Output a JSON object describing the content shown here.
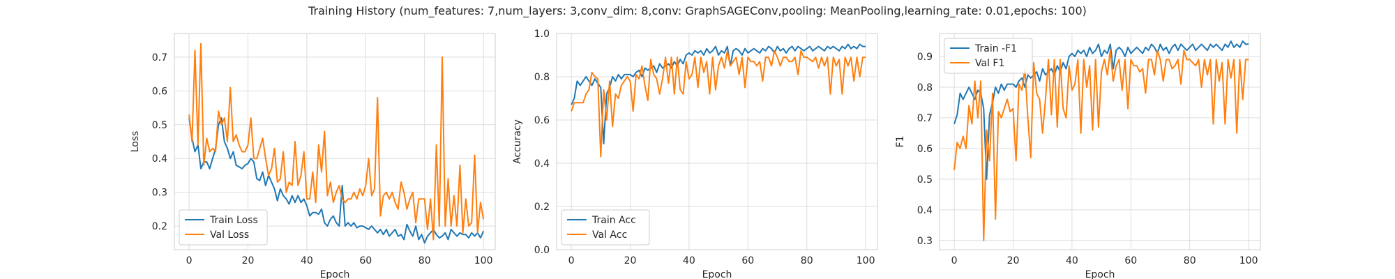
{
  "suptitle": "Training History (num_features: 7,num_layers: 3,conv_dim: 8,conv: GraphSAGEConv,pooling: MeanPooling,learning_rate: 0.01,epochs: 100)",
  "colors": {
    "train": "#1f77b4",
    "val": "#ff7f0e",
    "grid": "#dddddd",
    "frame": "#cccccc"
  },
  "chart_data": [
    {
      "type": "line",
      "xlabel": "Epoch",
      "ylabel": "Loss",
      "xlim": [
        -5,
        104
      ],
      "ylim": [
        0.13,
        0.77
      ],
      "xticks": [
        0,
        20,
        40,
        60,
        80,
        100
      ],
      "yticks": [
        0.2,
        0.3,
        0.4,
        0.5,
        0.6,
        0.7
      ],
      "xtick_labels": [
        "0",
        "20",
        "40",
        "60",
        "80",
        "100"
      ],
      "ytick_labels": [
        "0.2",
        "0.3",
        "0.4",
        "0.5",
        "0.6",
        "0.7"
      ],
      "grid": true,
      "legend": "lower left",
      "series": [
        {
          "name": "Train Loss",
          "color": "#1f77b4",
          "values": [
            0.52,
            0.46,
            0.42,
            0.44,
            0.37,
            0.39,
            0.39,
            0.37,
            0.4,
            0.43,
            0.5,
            0.52,
            0.45,
            0.43,
            0.4,
            0.42,
            0.38,
            0.375,
            0.37,
            0.38,
            0.385,
            0.4,
            0.39,
            0.34,
            0.335,
            0.36,
            0.32,
            0.35,
            0.33,
            0.31,
            0.275,
            0.31,
            0.29,
            0.28,
            0.265,
            0.29,
            0.27,
            0.29,
            0.27,
            0.28,
            0.26,
            0.23,
            0.24,
            0.24,
            0.235,
            0.25,
            0.21,
            0.2,
            0.22,
            0.23,
            0.21,
            0.2,
            0.32,
            0.2,
            0.21,
            0.2,
            0.21,
            0.195,
            0.2,
            0.2,
            0.195,
            0.19,
            0.2,
            0.19,
            0.18,
            0.19,
            0.175,
            0.19,
            0.17,
            0.18,
            0.19,
            0.17,
            0.175,
            0.16,
            0.205,
            0.185,
            0.17,
            0.2,
            0.16,
            0.175,
            0.15,
            0.17,
            0.18,
            0.19,
            0.175,
            0.165,
            0.17,
            0.18,
            0.16,
            0.19,
            0.18,
            0.17,
            0.18,
            0.175,
            0.175,
            0.165,
            0.18,
            0.17,
            0.18,
            0.165,
            0.185
          ]
        },
        {
          "name": "Val Loss",
          "color": "#ff7f0e",
          "values": [
            0.53,
            0.45,
            0.72,
            0.44,
            0.74,
            0.38,
            0.46,
            0.42,
            0.43,
            0.42,
            0.54,
            0.5,
            0.52,
            0.45,
            0.61,
            0.45,
            0.47,
            0.44,
            0.42,
            0.42,
            0.44,
            0.52,
            0.4,
            0.4,
            0.43,
            0.46,
            0.4,
            0.35,
            0.37,
            0.43,
            0.33,
            0.34,
            0.42,
            0.3,
            0.33,
            0.32,
            0.45,
            0.32,
            0.35,
            0.42,
            0.28,
            0.28,
            0.36,
            0.27,
            0.44,
            0.36,
            0.48,
            0.29,
            0.33,
            0.27,
            0.3,
            0.32,
            0.28,
            0.27,
            0.28,
            0.28,
            0.3,
            0.28,
            0.31,
            0.29,
            0.32,
            0.4,
            0.29,
            0.31,
            0.58,
            0.23,
            0.29,
            0.3,
            0.28,
            0.3,
            0.27,
            0.25,
            0.33,
            0.3,
            0.25,
            0.28,
            0.3,
            0.21,
            0.28,
            0.28,
            0.28,
            0.19,
            0.28,
            0.16,
            0.44,
            0.2,
            0.7,
            0.2,
            0.34,
            0.2,
            0.29,
            0.2,
            0.38,
            0.18,
            0.28,
            0.2,
            0.21,
            0.41,
            0.18,
            0.27,
            0.22
          ]
        }
      ]
    },
    {
      "type": "line",
      "xlabel": "Epoch",
      "ylabel": "Accuracy",
      "xlim": [
        -5,
        104
      ],
      "ylim": [
        0.0,
        1.0
      ],
      "xticks": [
        0,
        20,
        40,
        60,
        80,
        100
      ],
      "yticks": [
        0.0,
        0.2,
        0.4,
        0.6,
        0.8,
        1.0
      ],
      "xtick_labels": [
        "0",
        "20",
        "40",
        "60",
        "80",
        "100"
      ],
      "ytick_labels": [
        "0.0",
        "0.2",
        "0.4",
        "0.6",
        "0.8",
        "1.0"
      ],
      "grid": true,
      "legend": "lower left",
      "series": [
        {
          "name": "Train Acc",
          "color": "#1f77b4",
          "values": [
            0.67,
            0.7,
            0.78,
            0.76,
            0.78,
            0.8,
            0.78,
            0.76,
            0.79,
            0.77,
            0.75,
            0.49,
            0.72,
            0.75,
            0.8,
            0.78,
            0.81,
            0.79,
            0.81,
            0.81,
            0.81,
            0.8,
            0.82,
            0.83,
            0.8,
            0.84,
            0.83,
            0.84,
            0.85,
            0.82,
            0.86,
            0.84,
            0.85,
            0.86,
            0.84,
            0.87,
            0.85,
            0.88,
            0.86,
            0.9,
            0.91,
            0.9,
            0.92,
            0.91,
            0.92,
            0.9,
            0.93,
            0.91,
            0.92,
            0.94,
            0.9,
            0.92,
            0.91,
            0.94,
            0.85,
            0.92,
            0.93,
            0.92,
            0.9,
            0.93,
            0.91,
            0.92,
            0.93,
            0.92,
            0.91,
            0.93,
            0.92,
            0.94,
            0.93,
            0.91,
            0.94,
            0.92,
            0.93,
            0.91,
            0.93,
            0.94,
            0.92,
            0.94,
            0.93,
            0.92,
            0.93,
            0.94,
            0.92,
            0.93,
            0.94,
            0.93,
            0.92,
            0.94,
            0.93,
            0.94,
            0.93,
            0.92,
            0.94,
            0.93,
            0.95,
            0.93,
            0.94,
            0.93,
            0.95,
            0.94,
            0.94
          ]
        },
        {
          "name": "Val Acc",
          "color": "#ff7f0e",
          "values": [
            0.64,
            0.68,
            0.68,
            0.68,
            0.68,
            0.72,
            0.74,
            0.82,
            0.8,
            0.79,
            0.43,
            0.74,
            0.6,
            0.78,
            0.57,
            0.72,
            0.7,
            0.76,
            0.78,
            0.8,
            0.78,
            0.64,
            0.81,
            0.79,
            0.85,
            0.76,
            0.69,
            0.88,
            0.81,
            0.79,
            0.72,
            0.79,
            0.89,
            0.77,
            0.89,
            0.72,
            0.89,
            0.74,
            0.72,
            0.87,
            0.79,
            0.81,
            0.89,
            0.75,
            0.89,
            0.82,
            0.87,
            0.72,
            0.89,
            0.74,
            0.85,
            0.89,
            0.84,
            0.92,
            0.85,
            0.87,
            0.89,
            0.81,
            0.89,
            0.75,
            0.89,
            0.87,
            0.87,
            0.85,
            0.87,
            0.78,
            0.89,
            0.89,
            0.85,
            0.92,
            0.89,
            0.85,
            0.89,
            0.89,
            0.87,
            0.87,
            0.89,
            0.81,
            0.92,
            0.89,
            0.89,
            0.88,
            0.87,
            0.89,
            0.84,
            0.89,
            0.85,
            0.89,
            0.72,
            0.89,
            0.85,
            0.88,
            0.72,
            0.89,
            0.85,
            0.89,
            0.78,
            0.89,
            0.8,
            0.89,
            0.89
          ]
        }
      ]
    },
    {
      "type": "line",
      "xlabel": "Epoch",
      "ylabel": "F1",
      "xlim": [
        -5,
        104
      ],
      "ylim": [
        0.27,
        0.975
      ],
      "xticks": [
        0,
        20,
        40,
        60,
        80,
        100
      ],
      "yticks": [
        0.3,
        0.4,
        0.5,
        0.6,
        0.7,
        0.8,
        0.9
      ],
      "xtick_labels": [
        "0",
        "20",
        "40",
        "60",
        "80",
        "100"
      ],
      "ytick_labels": [
        "0.3",
        "0.4",
        "0.5",
        "0.6",
        "0.7",
        "0.8",
        "0.9"
      ],
      "grid": true,
      "legend": "upper left",
      "series": [
        {
          "name": "Train -F1",
          "color": "#1f77b4",
          "values": [
            0.68,
            0.71,
            0.78,
            0.76,
            0.78,
            0.8,
            0.78,
            0.76,
            0.79,
            0.78,
            0.73,
            0.5,
            0.71,
            0.75,
            0.8,
            0.78,
            0.81,
            0.79,
            0.81,
            0.81,
            0.81,
            0.8,
            0.82,
            0.83,
            0.8,
            0.84,
            0.83,
            0.84,
            0.85,
            0.82,
            0.86,
            0.84,
            0.85,
            0.86,
            0.84,
            0.87,
            0.85,
            0.88,
            0.86,
            0.9,
            0.91,
            0.9,
            0.92,
            0.91,
            0.92,
            0.9,
            0.93,
            0.91,
            0.92,
            0.94,
            0.9,
            0.92,
            0.91,
            0.94,
            0.86,
            0.92,
            0.93,
            0.92,
            0.9,
            0.93,
            0.91,
            0.92,
            0.93,
            0.92,
            0.91,
            0.93,
            0.92,
            0.94,
            0.93,
            0.91,
            0.94,
            0.92,
            0.93,
            0.91,
            0.93,
            0.94,
            0.92,
            0.94,
            0.93,
            0.92,
            0.93,
            0.94,
            0.92,
            0.93,
            0.94,
            0.93,
            0.92,
            0.94,
            0.93,
            0.94,
            0.93,
            0.92,
            0.94,
            0.93,
            0.95,
            0.93,
            0.94,
            0.93,
            0.95,
            0.94,
            0.94
          ]
        },
        {
          "name": "Val F1",
          "color": "#ff7f0e",
          "values": [
            0.53,
            0.62,
            0.6,
            0.64,
            0.6,
            0.74,
            0.68,
            0.82,
            0.7,
            0.82,
            0.3,
            0.66,
            0.56,
            0.78,
            0.37,
            0.72,
            0.7,
            0.73,
            0.76,
            0.72,
            0.73,
            0.56,
            0.81,
            0.79,
            0.86,
            0.7,
            0.57,
            0.88,
            0.78,
            0.76,
            0.65,
            0.76,
            0.89,
            0.71,
            0.89,
            0.67,
            0.89,
            0.73,
            0.7,
            0.87,
            0.79,
            0.81,
            0.89,
            0.65,
            0.89,
            0.8,
            0.87,
            0.66,
            0.89,
            0.67,
            0.85,
            0.89,
            0.84,
            0.92,
            0.82,
            0.87,
            0.89,
            0.79,
            0.89,
            0.73,
            0.89,
            0.87,
            0.87,
            0.85,
            0.86,
            0.78,
            0.89,
            0.89,
            0.84,
            0.92,
            0.89,
            0.82,
            0.89,
            0.89,
            0.86,
            0.87,
            0.89,
            0.81,
            0.92,
            0.89,
            0.89,
            0.88,
            0.87,
            0.89,
            0.8,
            0.89,
            0.84,
            0.89,
            0.68,
            0.89,
            0.82,
            0.88,
            0.68,
            0.89,
            0.83,
            0.89,
            0.65,
            0.89,
            0.76,
            0.89,
            0.89
          ]
        }
      ]
    }
  ]
}
